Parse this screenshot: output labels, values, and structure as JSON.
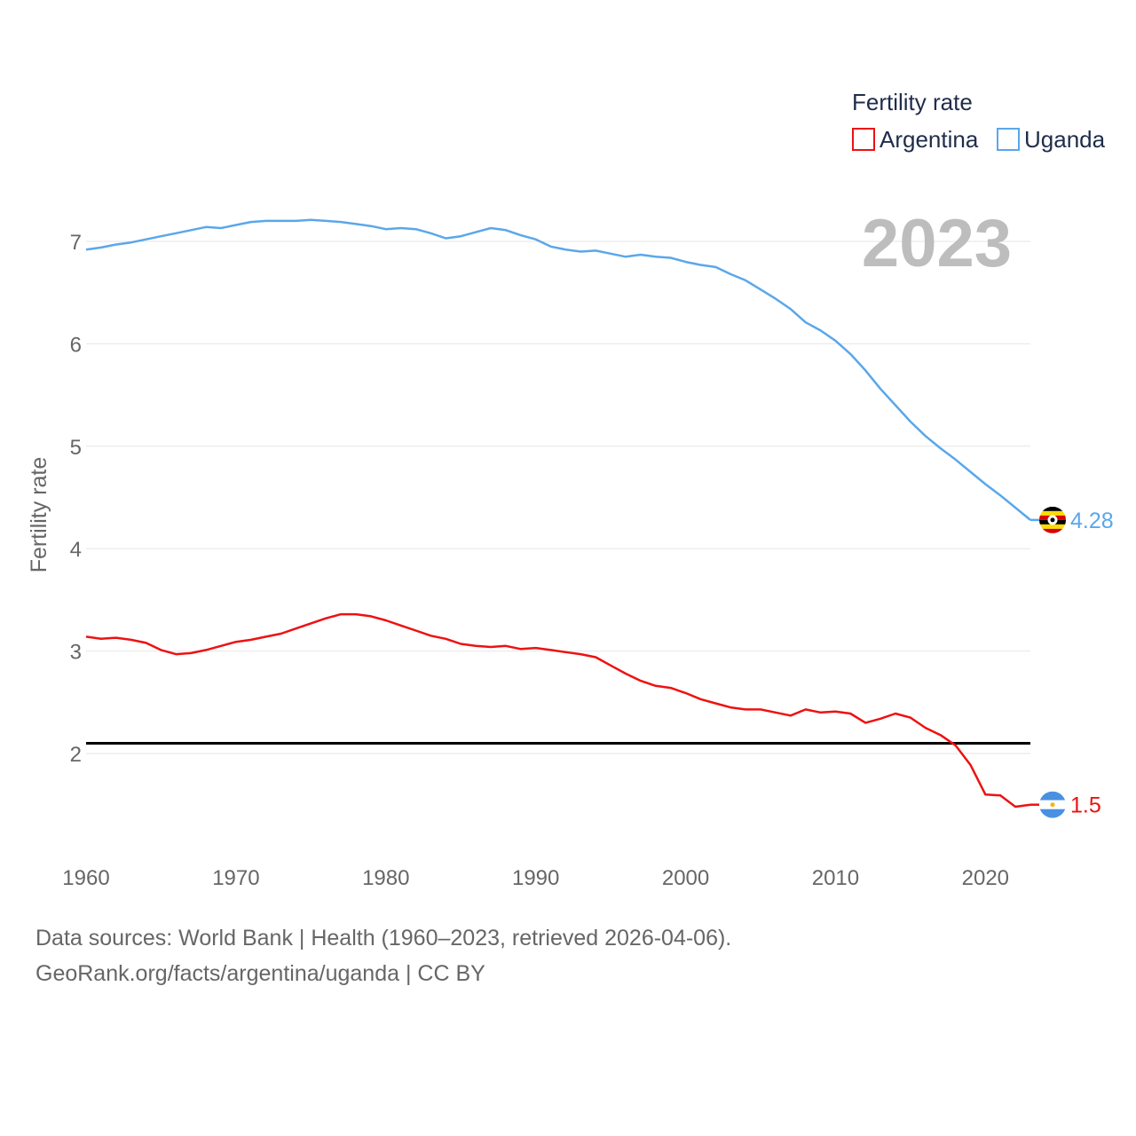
{
  "footer": {
    "line1": "Data sources: World Bank | Health (1960–2023, retrieved 2026-04-06).",
    "line2": "GeoRank.org/facts/argentina/uganda | CC BY"
  },
  "chart_data": {
    "type": "line",
    "title": "Fertility rate",
    "year_label": "2023",
    "ylabel": "Fertility rate",
    "xlabel": "",
    "xlim": [
      1960,
      2023
    ],
    "ylim": [
      1.0,
      7.5
    ],
    "x_ticks": [
      1960,
      1970,
      1980,
      1990,
      2000,
      2010,
      2020
    ],
    "y_ticks": [
      2,
      3,
      4,
      5,
      6,
      7
    ],
    "reference_line": {
      "y": 2.1,
      "color": "#000000"
    },
    "legend": {
      "title": "Fertility rate",
      "position": "top-right"
    },
    "x": [
      1960,
      1961,
      1962,
      1963,
      1964,
      1965,
      1966,
      1967,
      1968,
      1969,
      1970,
      1971,
      1972,
      1973,
      1974,
      1975,
      1976,
      1977,
      1978,
      1979,
      1980,
      1981,
      1982,
      1983,
      1984,
      1985,
      1986,
      1987,
      1988,
      1989,
      1990,
      1991,
      1992,
      1993,
      1994,
      1995,
      1996,
      1997,
      1998,
      1999,
      2000,
      2001,
      2002,
      2003,
      2004,
      2005,
      2006,
      2007,
      2008,
      2009,
      2010,
      2011,
      2012,
      2013,
      2014,
      2015,
      2016,
      2017,
      2018,
      2019,
      2020,
      2021,
      2022,
      2023
    ],
    "series": [
      {
        "name": "Argentina",
        "color": "#ee1111",
        "end_label": "1.5",
        "flag_icon": "argentina-flag-icon",
        "values": [
          3.14,
          3.12,
          3.13,
          3.11,
          3.08,
          3.01,
          2.97,
          2.98,
          3.01,
          3.05,
          3.09,
          3.11,
          3.14,
          3.17,
          3.22,
          3.27,
          3.32,
          3.36,
          3.36,
          3.34,
          3.3,
          3.25,
          3.2,
          3.15,
          3.12,
          3.07,
          3.05,
          3.04,
          3.05,
          3.02,
          3.03,
          3.01,
          2.99,
          2.97,
          2.94,
          2.86,
          2.78,
          2.71,
          2.66,
          2.64,
          2.59,
          2.53,
          2.49,
          2.45,
          2.43,
          2.43,
          2.4,
          2.37,
          2.43,
          2.4,
          2.41,
          2.39,
          2.3,
          2.34,
          2.39,
          2.35,
          2.25,
          2.18,
          2.08,
          1.89,
          1.6,
          1.59,
          1.48,
          1.5
        ]
      },
      {
        "name": "Uganda",
        "color": "#5aa7ea",
        "end_label": "4.28",
        "flag_icon": "uganda-flag-icon",
        "values": [
          6.92,
          6.94,
          6.97,
          6.99,
          7.02,
          7.05,
          7.08,
          7.11,
          7.14,
          7.13,
          7.16,
          7.19,
          7.2,
          7.2,
          7.2,
          7.21,
          7.2,
          7.19,
          7.17,
          7.15,
          7.12,
          7.13,
          7.12,
          7.08,
          7.03,
          7.05,
          7.09,
          7.13,
          7.11,
          7.06,
          7.02,
          6.95,
          6.92,
          6.9,
          6.91,
          6.88,
          6.85,
          6.87,
          6.85,
          6.84,
          6.8,
          6.77,
          6.75,
          6.68,
          6.62,
          6.53,
          6.44,
          6.34,
          6.21,
          6.13,
          6.03,
          5.9,
          5.74,
          5.56,
          5.4,
          5.24,
          5.1,
          4.98,
          4.87,
          4.75,
          4.63,
          4.52,
          4.4,
          4.28
        ]
      }
    ]
  }
}
